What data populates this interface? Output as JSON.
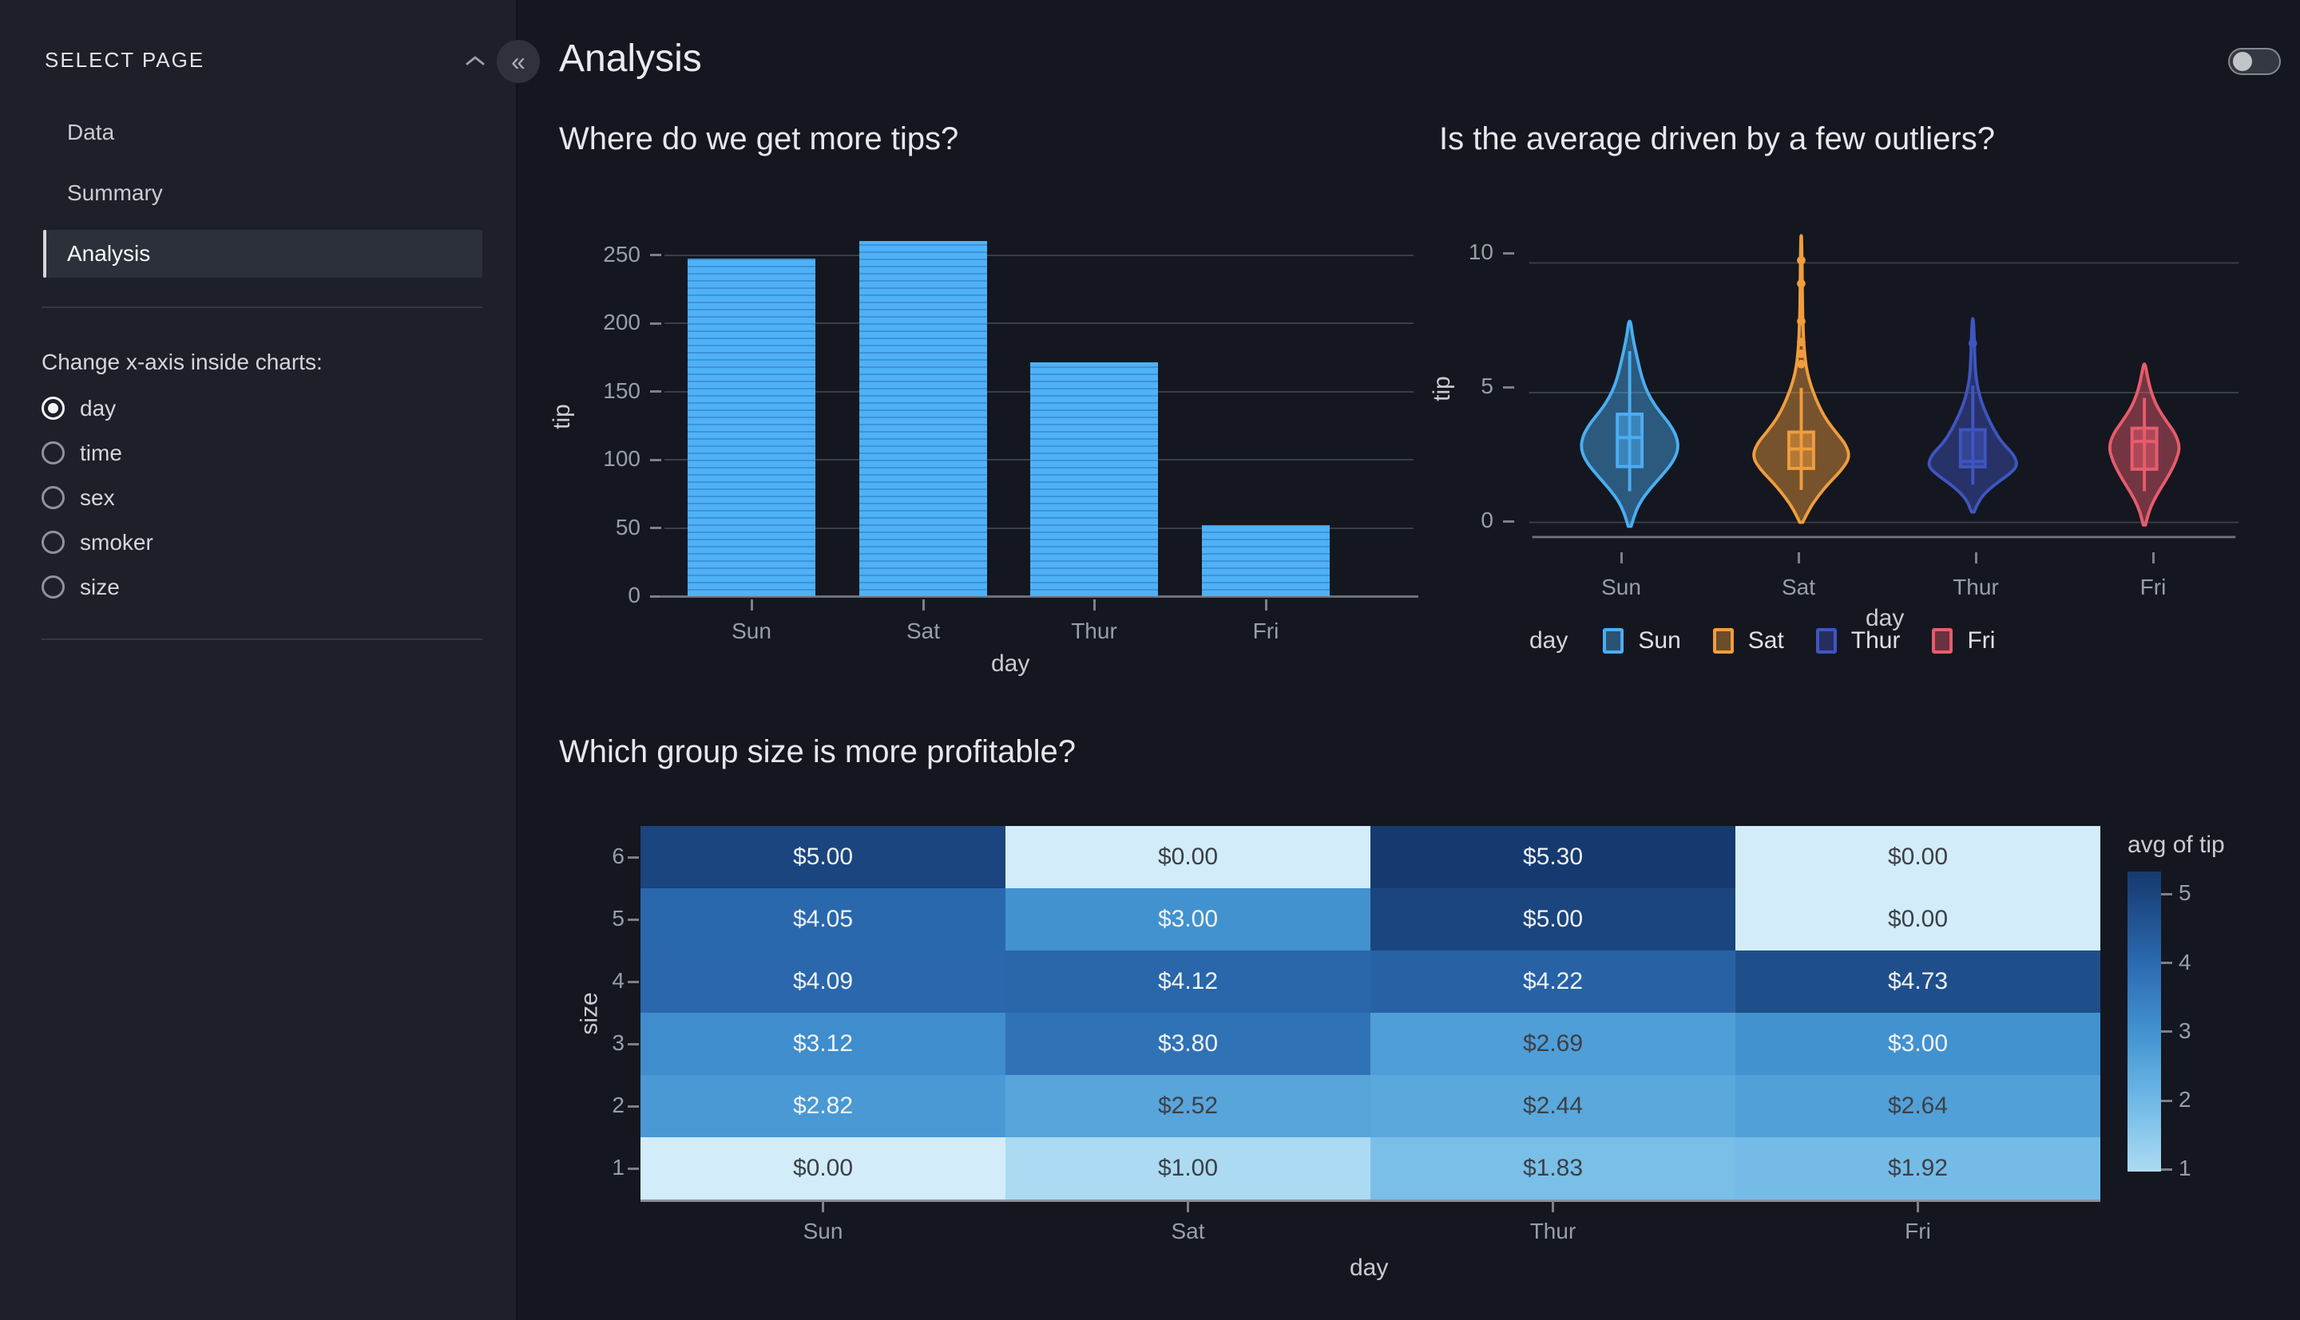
{
  "header": {
    "title": "Analysis"
  },
  "icons": {
    "collapse_sidebar": "«"
  },
  "sidebar": {
    "header": "SELECT PAGE",
    "items": [
      {
        "label": "Data",
        "selected": false
      },
      {
        "label": "Summary",
        "selected": false
      },
      {
        "label": "Analysis",
        "selected": true
      }
    ],
    "radio_label": "Change x-axis inside charts:",
    "radio_options": [
      {
        "label": "day",
        "selected": true
      },
      {
        "label": "time",
        "selected": false
      },
      {
        "label": "sex",
        "selected": false
      },
      {
        "label": "smoker",
        "selected": false
      },
      {
        "label": "size",
        "selected": false
      }
    ]
  },
  "chart_data": [
    {
      "type": "bar",
      "title": "Where do we get more tips?",
      "xlabel": "day",
      "ylabel": "tip",
      "categories": [
        "Sun",
        "Sat",
        "Thur",
        "Fri"
      ],
      "values": [
        247.4,
        260.4,
        171.8,
        52.0
      ],
      "yticks": [
        0,
        50,
        100,
        150,
        200,
        250
      ],
      "ylim": [
        0,
        264
      ],
      "bar_color": "#4fb1f7",
      "grid": true
    },
    {
      "type": "violin",
      "title": "Is the average driven by a few outliers?",
      "xlabel": "day",
      "ylabel": "tip",
      "legend_title": "day",
      "categories": [
        "Sun",
        "Sat",
        "Thur",
        "Fri"
      ],
      "yticks": [
        0,
        5,
        10
      ],
      "ylim": [
        -1.2,
        11.5
      ],
      "grid": true,
      "legend_position": "bottom",
      "series": [
        {
          "name": "Sun",
          "color": "#4aaef2",
          "half_width": 63,
          "box": {
            "q1": 2.15,
            "median": 3.27,
            "q3": 4.17,
            "whisker_low": 1.2,
            "whisker_high": 6.6
          },
          "outliers": [],
          "profile": [
            [
              -0.15,
              0.03
            ],
            [
              0.3,
              0.1
            ],
            [
              0.8,
              0.22
            ],
            [
              1.3,
              0.42
            ],
            [
              1.8,
              0.66
            ],
            [
              2.3,
              0.88
            ],
            [
              2.8,
              1.0
            ],
            [
              3.3,
              0.97
            ],
            [
              3.8,
              0.82
            ],
            [
              4.3,
              0.6
            ],
            [
              4.8,
              0.42
            ],
            [
              5.3,
              0.3
            ],
            [
              5.8,
              0.22
            ],
            [
              6.3,
              0.16
            ],
            [
              6.8,
              0.1
            ],
            [
              7.3,
              0.05
            ],
            [
              7.75,
              0.02
            ]
          ]
        },
        {
          "name": "Sat",
          "color": "#f09d3e",
          "half_width": 63,
          "box": {
            "q1": 2.08,
            "median": 2.83,
            "q3": 3.48,
            "whisker_low": 1.25,
            "whisker_high": 5.18
          },
          "outliers": [
            10.1,
            9.2,
            7.75,
            6.95,
            6.5,
            6.1
          ],
          "profile": [
            [
              0.0,
              0.03
            ],
            [
              0.5,
              0.16
            ],
            [
              1.0,
              0.34
            ],
            [
              1.5,
              0.56
            ],
            [
              2.0,
              0.82
            ],
            [
              2.5,
              1.0
            ],
            [
              3.0,
              0.92
            ],
            [
              3.5,
              0.7
            ],
            [
              4.0,
              0.5
            ],
            [
              4.5,
              0.36
            ],
            [
              5.0,
              0.25
            ],
            [
              5.5,
              0.16
            ],
            [
              6.0,
              0.1
            ],
            [
              6.5,
              0.07
            ],
            [
              7.0,
              0.05
            ],
            [
              7.5,
              0.04
            ],
            [
              8.0,
              0.03
            ],
            [
              8.6,
              0.025
            ],
            [
              9.2,
              0.02
            ],
            [
              10.0,
              0.018
            ],
            [
              10.5,
              0.012
            ],
            [
              11.05,
              0.006
            ]
          ]
        },
        {
          "name": "Thur",
          "color": "#3f55c0",
          "half_width": 58,
          "box": {
            "q1": 2.14,
            "median": 2.35,
            "q3": 3.57,
            "whisker_low": 1.45,
            "whisker_high": 5.27
          },
          "outliers": [
            6.9
          ],
          "profile": [
            [
              0.4,
              0.03
            ],
            [
              0.9,
              0.14
            ],
            [
              1.4,
              0.44
            ],
            [
              1.9,
              0.85
            ],
            [
              2.2,
              1.0
            ],
            [
              2.6,
              0.92
            ],
            [
              3.1,
              0.64
            ],
            [
              3.6,
              0.46
            ],
            [
              4.1,
              0.32
            ],
            [
              4.6,
              0.2
            ],
            [
              5.1,
              0.12
            ],
            [
              5.6,
              0.07
            ],
            [
              6.1,
              0.05
            ],
            [
              6.6,
              0.04
            ],
            [
              7.0,
              0.035
            ],
            [
              7.4,
              0.025
            ],
            [
              7.85,
              0.01
            ]
          ]
        },
        {
          "name": "Fri",
          "color": "#e85c6d",
          "half_width": 46,
          "box": {
            "q1": 2.05,
            "median": 3.12,
            "q3": 3.63,
            "whisker_low": 1.2,
            "whisker_high": 4.8
          },
          "outliers": [],
          "profile": [
            [
              -0.1,
              0.03
            ],
            [
              0.4,
              0.12
            ],
            [
              0.9,
              0.28
            ],
            [
              1.4,
              0.5
            ],
            [
              1.9,
              0.72
            ],
            [
              2.4,
              0.9
            ],
            [
              2.9,
              1.0
            ],
            [
              3.4,
              0.88
            ],
            [
              3.9,
              0.62
            ],
            [
              4.4,
              0.38
            ],
            [
              4.9,
              0.22
            ],
            [
              5.4,
              0.12
            ],
            [
              5.9,
              0.05
            ],
            [
              6.1,
              0.02
            ]
          ]
        }
      ]
    },
    {
      "type": "heatmap",
      "title": "Which group size is more profitable?",
      "xlabel": "day",
      "ylabel": "size",
      "columns": [
        "Sun",
        "Sat",
        "Thur",
        "Fri"
      ],
      "rows": [
        "6",
        "5",
        "4",
        "3",
        "2",
        "1"
      ],
      "values": [
        [
          5.0,
          0.0,
          5.3,
          0.0
        ],
        [
          4.05,
          3.0,
          5.0,
          0.0
        ],
        [
          4.09,
          4.12,
          4.22,
          4.73
        ],
        [
          3.12,
          3.8,
          2.69,
          3.0
        ],
        [
          2.82,
          2.52,
          2.44,
          2.64
        ],
        [
          0.0,
          1.0,
          1.83,
          1.92
        ]
      ],
      "labels": [
        [
          "$5.00",
          "$0.00",
          "$5.30",
          "$0.00"
        ],
        [
          "$4.05",
          "$3.00",
          "$5.00",
          "$0.00"
        ],
        [
          "$4.09",
          "$4.12",
          "$4.22",
          "$4.73"
        ],
        [
          "$3.12",
          "$3.80",
          "$2.69",
          "$3.00"
        ],
        [
          "$2.82",
          "$2.52",
          "$2.44",
          "$2.64"
        ],
        [
          "$0.00",
          "$1.00",
          "$1.83",
          "$1.92"
        ]
      ],
      "colorbar": {
        "title": "avg of tip",
        "ticks": [
          5,
          4,
          3,
          2,
          1
        ],
        "domain": [
          0.97,
          5.33
        ]
      },
      "colorscale": [
        [
          0,
          "#d2ecfa"
        ],
        [
          1,
          "#abdaf2"
        ],
        [
          2,
          "#6fb9e6"
        ],
        [
          3,
          "#4292d0"
        ],
        [
          4,
          "#2b6ab0"
        ],
        [
          5.3,
          "#163a6f"
        ]
      ],
      "text_color_light": "#f2f4f7",
      "text_color_dark": "#3c3f47",
      "text_light_threshold": 2.8
    }
  ]
}
